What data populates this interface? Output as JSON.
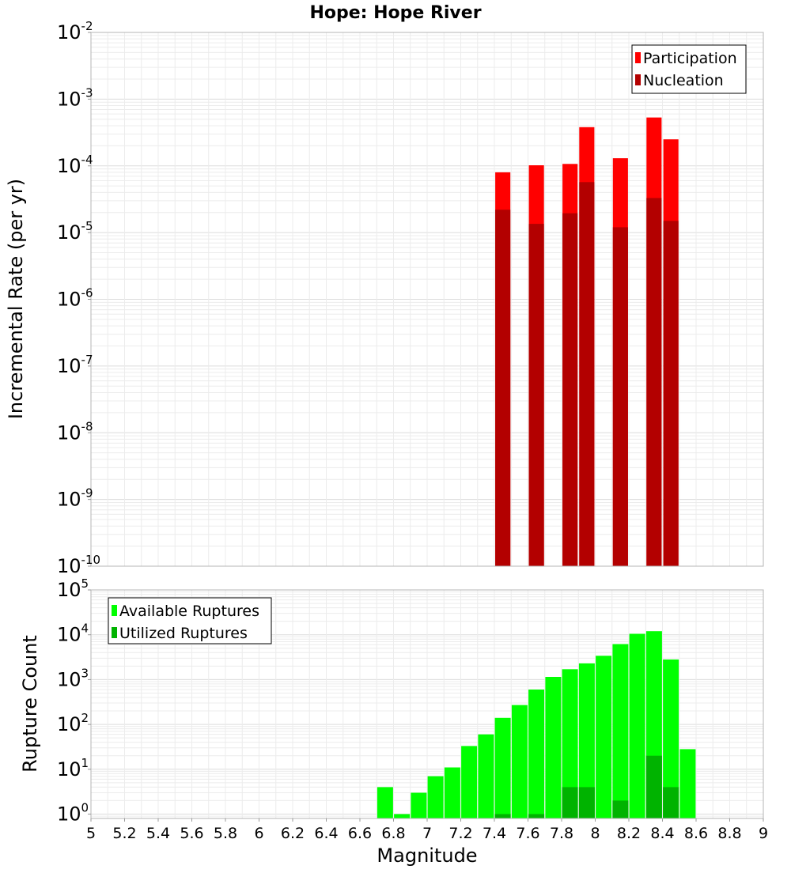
{
  "chart_data": [
    {
      "type": "bar",
      "title": "Hope: Hope River",
      "ylabel": "Incremental Rate (per yr)",
      "xlabel": "",
      "yscale": "log",
      "ylim": [
        1e-10,
        0.01
      ],
      "xlim": [
        5,
        9
      ],
      "grid": true,
      "legend_position": "top-right",
      "x": [
        7.45,
        7.65,
        7.85,
        7.95,
        8.15,
        8.35,
        8.45
      ],
      "series": [
        {
          "name": "Participation",
          "color": "#ff0000",
          "values": [
            8e-05,
            0.000102,
            0.000107,
            0.00038,
            0.00013,
            0.00053,
            0.00025
          ]
        },
        {
          "name": "Nucleation",
          "color": "#b30000",
          "values": [
            2.2e-05,
            1.35e-05,
            1.95e-05,
            5.7e-05,
            1.2e-05,
            3.3e-05,
            1.5e-05
          ]
        }
      ]
    },
    {
      "type": "bar",
      "title": "",
      "ylabel": "Rupture Count",
      "xlabel": "Magnitude",
      "yscale": "log",
      "ylim": [
        0.8,
        100000.0
      ],
      "xlim": [
        5,
        9
      ],
      "grid": true,
      "legend_position": "top-left",
      "x": [
        6.75,
        6.85,
        6.95,
        7.05,
        7.15,
        7.25,
        7.35,
        7.45,
        7.55,
        7.65,
        7.75,
        7.85,
        7.95,
        8.05,
        8.15,
        8.25,
        8.35,
        8.45,
        8.55
      ],
      "series": [
        {
          "name": "Available Ruptures",
          "color": "#00ff00",
          "values": [
            4,
            1,
            3,
            7,
            11,
            33,
            60,
            140,
            270,
            600,
            1150,
            1700,
            2300,
            3400,
            6200,
            10500,
            12000,
            2800,
            28
          ]
        },
        {
          "name": "Utilized Ruptures",
          "color": "#00b300",
          "values": [
            0,
            0,
            0,
            0,
            0,
            0,
            0,
            1,
            0,
            1,
            0,
            4,
            4,
            0,
            2,
            0,
            20,
            4,
            0
          ]
        }
      ]
    }
  ],
  "x_tick_labels": [
    "5",
    "5.2",
    "5.4",
    "5.6",
    "5.8",
    "6",
    "6.2",
    "6.4",
    "6.6",
    "6.8",
    "7",
    "7.2",
    "7.4",
    "7.6",
    "7.8",
    "8",
    "8.2",
    "8.4",
    "8.6",
    "8.8",
    "9"
  ],
  "top_y_ticks": [
    {
      "base": "10",
      "exp": "-2"
    },
    {
      "base": "10",
      "exp": "-3"
    },
    {
      "base": "10",
      "exp": "-4"
    },
    {
      "base": "10",
      "exp": "-5"
    },
    {
      "base": "10",
      "exp": "-6"
    },
    {
      "base": "10",
      "exp": "-7"
    },
    {
      "base": "10",
      "exp": "-8"
    },
    {
      "base": "10",
      "exp": "-9"
    },
    {
      "base": "10",
      "exp": "-10"
    }
  ],
  "bottom_y_ticks": [
    {
      "base": "10",
      "exp": "5"
    },
    {
      "base": "10",
      "exp": "4"
    },
    {
      "base": "10",
      "exp": "3"
    },
    {
      "base": "10",
      "exp": "2"
    },
    {
      "base": "10",
      "exp": "1"
    },
    {
      "base": "10",
      "exp": "0"
    }
  ]
}
